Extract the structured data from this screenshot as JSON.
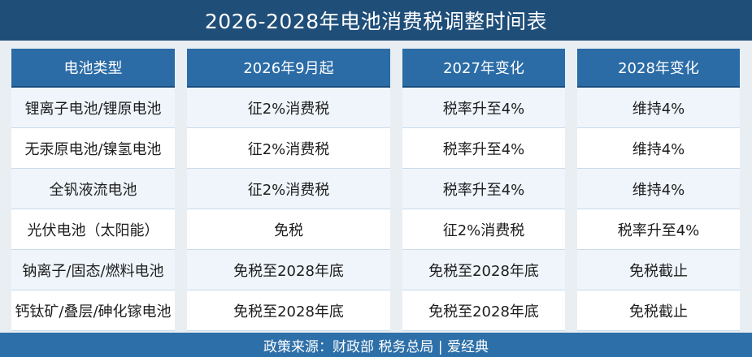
{
  "title": "2026-2028年电池消费税调整时间表",
  "headers": [
    "电池类型",
    "2026年9月起",
    "2027年变化",
    "2028年变化"
  ],
  "rows": [
    [
      "锂离子电池/锂原电池",
      "征2%消费税",
      "税率升至4%",
      "维持4%"
    ],
    [
      "无汞原电池/镍氢电池",
      "征2%消费税",
      "税率升至4%",
      "维持4%"
    ],
    [
      "全钒液流电池",
      "征2%消费税",
      "税率升至4%",
      "维持4%"
    ],
    [
      "光伏电池（太阳能）",
      "免税",
      "征2%消费税",
      "税率升至4%"
    ],
    [
      "钠离子/固态/燃料电池",
      "免税至2028年底",
      "免税至2028年底",
      "免税截止"
    ],
    [
      "钙钛矿/叠层/砷化镓电池",
      "免税至2028年底",
      "免税至2028年底",
      "免税截止"
    ]
  ],
  "footer": "政策来源：财政部 税务总局 | 爱经典"
}
